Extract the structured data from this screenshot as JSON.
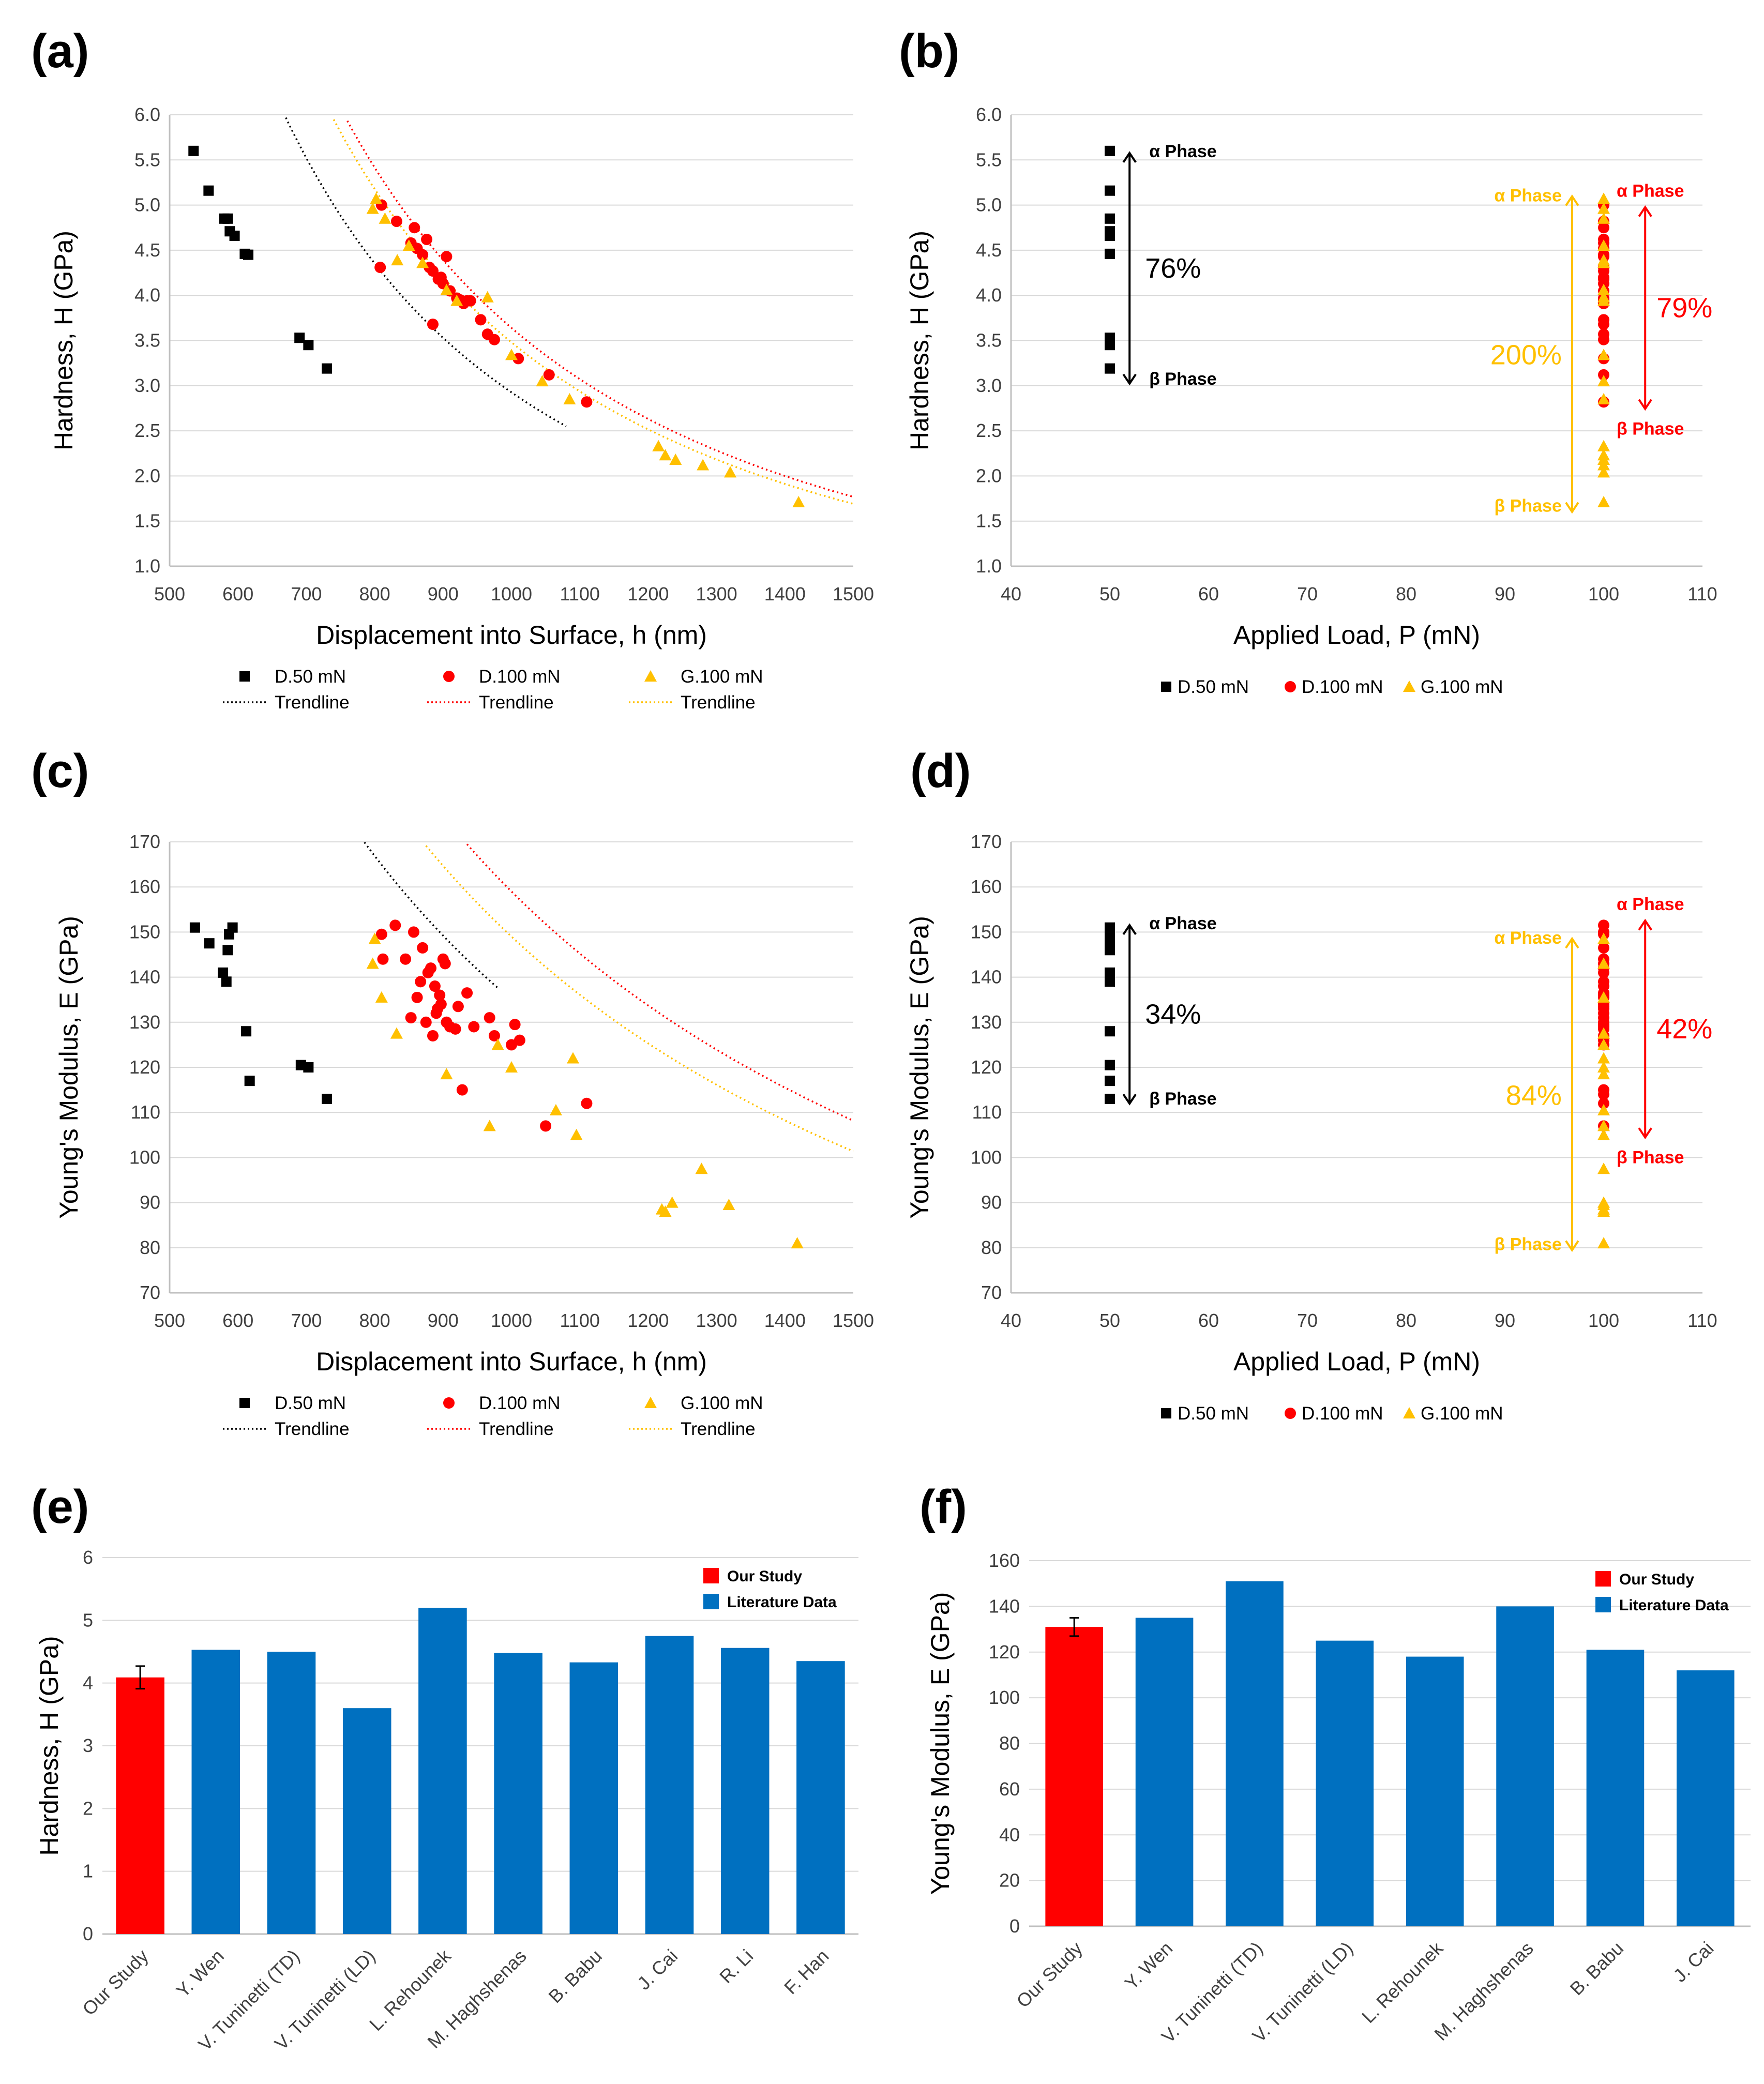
{
  "colors": {
    "black": "#000000",
    "red": "#ff0000",
    "gold": "#ffc000",
    "blue": "#0070c0",
    "grid": "#d9d9d9"
  },
  "panels": {
    "a": "(a)",
    "b": "(b)",
    "c": "(c)",
    "d": "(d)",
    "e": "(e)",
    "f": "(f)"
  },
  "chart_data": [
    {
      "id": "a",
      "type": "scatter",
      "xlabel": "Displacement into Surface, h (nm)",
      "ylabel": "Hardness, H (GPa)",
      "xlim": [
        500,
        1500
      ],
      "ylim": [
        1.0,
        6.0
      ],
      "xticks": [
        "500",
        "600",
        "700",
        "800",
        "900",
        "1000",
        "1100",
        "1200",
        "1300",
        "1400",
        "1500"
      ],
      "yticks": [
        "1.0",
        "1.5",
        "2.0",
        "2.5",
        "3.0",
        "3.5",
        "4.0",
        "4.5",
        "5.0",
        "5.5",
        "6.0"
      ],
      "series": [
        {
          "name": "D.50 mN",
          "marker": "square",
          "color": "#000000",
          "x": [
            535,
            557,
            580,
            585,
            588,
            595,
            610,
            615,
            690,
            703,
            730
          ],
          "y": [
            5.6,
            5.16,
            4.85,
            4.85,
            4.71,
            4.66,
            4.46,
            4.45,
            3.53,
            3.45,
            3.19
          ]
        },
        {
          "name": "D.100 mN",
          "marker": "circle",
          "color": "#ff0000",
          "x": [
            810,
            808,
            832,
            853,
            858,
            862,
            870,
            876,
            880,
            885,
            893,
            897,
            900,
            905,
            910,
            920,
            925,
            930,
            935,
            940,
            955,
            965,
            975,
            1010,
            1055,
            1110,
            885
          ],
          "y": [
            5.0,
            4.31,
            4.82,
            4.58,
            4.75,
            4.52,
            4.45,
            4.62,
            4.31,
            4.27,
            4.18,
            4.2,
            4.13,
            4.43,
            4.05,
            3.97,
            3.95,
            3.91,
            3.94,
            3.94,
            3.73,
            3.57,
            3.51,
            3.3,
            3.12,
            2.82,
            3.68
          ]
        },
        {
          "name": "G.100 mN",
          "marker": "triangle",
          "color": "#ffc000",
          "x": [
            797,
            802,
            815,
            833,
            850,
            870,
            905,
            920,
            965,
            1000,
            1045,
            1085,
            1215,
            1225,
            1240,
            1280,
            1320,
            1420
          ],
          "y": [
            4.96,
            5.07,
            4.85,
            4.39,
            4.55,
            4.36,
            4.06,
            3.94,
            3.98,
            3.34,
            3.05,
            2.85,
            2.33,
            2.23,
            2.18,
            2.12,
            2.04,
            1.71
          ]
        }
      ],
      "trendlines": [
        {
          "name": "Trendline",
          "color": "#000000",
          "a": 2926,
          "b": 1.78,
          "from": 500,
          "to": 1080
        },
        {
          "name": "Trendline",
          "color": "#ff0000",
          "a": 3640,
          "b": 1.78,
          "from": 500,
          "to": 1500
        },
        {
          "name": "Trendline",
          "color": "#ffc000",
          "a": 3480,
          "b": 1.78,
          "from": 500,
          "to": 1500
        }
      ],
      "legend": [
        "D.50 mN",
        "D.100 mN",
        "G.100 mN",
        "Trendline",
        "Trendline",
        "Trendline"
      ]
    },
    {
      "id": "b",
      "type": "scatter",
      "xlabel": "Applied Load, P (mN)",
      "ylabel": "Hardness, H (GPa)",
      "xlim": [
        40,
        110
      ],
      "ylim": [
        1.0,
        6.0
      ],
      "xticks": [
        "40",
        "50",
        "60",
        "70",
        "80",
        "90",
        "100",
        "110"
      ],
      "yticks": [
        "1.0",
        "1.5",
        "2.0",
        "2.5",
        "3.0",
        "3.5",
        "4.0",
        "4.5",
        "5.0",
        "5.5",
        "6.0"
      ],
      "series": [
        {
          "name": "D.50 mN",
          "marker": "square",
          "color": "#000000",
          "x": 50,
          "y": [
            5.6,
            5.16,
            4.85,
            4.71,
            4.66,
            4.46,
            3.53,
            3.45,
            3.19
          ]
        },
        {
          "name": "D.100 mN",
          "marker": "circle",
          "color": "#ff0000",
          "x": 100,
          "y": [
            5.0,
            4.82,
            4.75,
            4.62,
            4.58,
            4.52,
            4.45,
            4.43,
            4.31,
            4.27,
            4.2,
            4.18,
            4.13,
            4.05,
            3.97,
            3.95,
            3.94,
            3.91,
            3.73,
            3.68,
            3.57,
            3.51,
            3.3,
            3.12,
            2.82
          ]
        },
        {
          "name": "G.100 mN",
          "marker": "triangle",
          "color": "#ffc000",
          "x": 100,
          "y": [
            5.07,
            4.96,
            4.85,
            4.55,
            4.39,
            4.36,
            4.06,
            3.98,
            3.94,
            3.34,
            3.05,
            2.85,
            2.33,
            2.23,
            2.18,
            2.12,
            2.04,
            1.71
          ]
        }
      ],
      "annotations": {
        "black": {
          "top": "α Phase",
          "bottom": "β Phase",
          "pct": "76%"
        },
        "gold": {
          "top": "α Phase",
          "bottom": "β Phase",
          "pct": "200%"
        },
        "red": {
          "top": "α Phase",
          "bottom": "β Phase",
          "pct": "79%"
        }
      },
      "legend": [
        "D.50 mN",
        "D.100 mN",
        "G.100 mN"
      ]
    },
    {
      "id": "c",
      "type": "scatter",
      "xlabel": "Displacement into Surface, h (nm)",
      "ylabel": "Young's Modulus, E (GPa)",
      "xlim": [
        500,
        1500
      ],
      "ylim": [
        70,
        170
      ],
      "xticks": [
        "500",
        "600",
        "700",
        "800",
        "900",
        "1000",
        "1100",
        "1200",
        "1300",
        "1400",
        "1500"
      ],
      "yticks": [
        "70",
        "80",
        "90",
        "100",
        "110",
        "120",
        "130",
        "140",
        "150",
        "160",
        "170"
      ],
      "series": [
        {
          "name": "D.50 mN",
          "marker": "square",
          "color": "#000000",
          "x": [
            537,
            558,
            578,
            583,
            585,
            587,
            592,
            612,
            617,
            692,
            703,
            730
          ],
          "y": [
            151,
            147.5,
            141,
            139,
            146,
            149.5,
            151,
            128,
            117,
            120.5,
            120,
            113
          ]
        },
        {
          "name": "D.100 mN",
          "marker": "circle",
          "color": "#ff0000",
          "x": [
            810,
            812,
            830,
            845,
            853,
            857,
            862,
            867,
            870,
            875,
            878,
            882,
            885,
            888,
            890,
            892,
            895,
            897,
            900,
            903,
            905,
            910,
            918,
            922,
            928,
            935,
            945,
            968,
            975,
            1000,
            1005,
            1012,
            1050,
            1110
          ],
          "y": [
            149.5,
            144,
            151.5,
            144,
            131,
            150,
            135.5,
            139,
            146.5,
            130,
            141,
            142,
            127,
            138,
            132,
            133,
            136,
            134,
            144,
            143,
            130,
            129,
            128.5,
            133.5,
            115,
            136.5,
            129,
            131,
            127,
            125,
            129.5,
            126,
            107,
            112
          ]
        },
        {
          "name": "G.100 mN",
          "marker": "triangle",
          "color": "#ffc000",
          "x": [
            797,
            800,
            810,
            832,
            905,
            968,
            980,
            1000,
            1065,
            1090,
            1095,
            1220,
            1225,
            1235,
            1278,
            1318,
            1418
          ],
          "y": [
            143,
            148.5,
            135.5,
            127.5,
            118.5,
            107,
            125,
            120,
            110.5,
            122,
            105,
            88.5,
            88,
            90,
            97.5,
            89.5,
            81
          ]
        }
      ],
      "trendlines": [
        {
          "name": "Trendline",
          "color": "#000000",
          "a": 135,
          "b": 0.95,
          "from": 500,
          "to": 980
        },
        {
          "name": "Trendline",
          "color": "#ff0000",
          "a": 159,
          "b": 0.95,
          "from": 500,
          "to": 1500
        },
        {
          "name": "Trendline",
          "color": "#ffc000",
          "a": 149,
          "b": 0.95,
          "from": 500,
          "to": 1500
        }
      ],
      "legend": [
        "D.50 mN",
        "D.100 mN",
        "G.100 mN",
        "Trendline",
        "Trendline",
        "Trendline"
      ]
    },
    {
      "id": "d",
      "type": "scatter",
      "xlabel": "Applied Load, P (mN)",
      "ylabel": "Young's Modulus, E (GPa)",
      "xlim": [
        40,
        110
      ],
      "ylim": [
        70,
        170
      ],
      "xticks": [
        "40",
        "50",
        "60",
        "70",
        "80",
        "90",
        "100",
        "110"
      ],
      "yticks": [
        "70",
        "80",
        "90",
        "100",
        "110",
        "120",
        "130",
        "140",
        "150",
        "160",
        "170"
      ],
      "series": [
        {
          "name": "D.50 mN",
          "marker": "square",
          "color": "#000000",
          "x": 50,
          "y": [
            151,
            149.5,
            147.5,
            146,
            141,
            139,
            128,
            120.5,
            117,
            113
          ]
        },
        {
          "name": "D.100 mN",
          "marker": "circle",
          "color": "#ff0000",
          "x": 100,
          "y": [
            151.5,
            150,
            149.5,
            146.5,
            144,
            143,
            142,
            141,
            139,
            138,
            136.5,
            136,
            135.5,
            134,
            133.5,
            133,
            132,
            131,
            130,
            129.5,
            129,
            128.5,
            127,
            126,
            125,
            115,
            114,
            112,
            107
          ]
        },
        {
          "name": "G.100 mN",
          "marker": "triangle",
          "color": "#ffc000",
          "x": 100,
          "y": [
            148.5,
            143,
            135.5,
            127.5,
            125,
            122,
            120,
            118.5,
            110.5,
            107,
            105,
            97.5,
            90,
            89.5,
            88.5,
            88,
            81
          ]
        }
      ],
      "annotations": {
        "black": {
          "top": "α Phase",
          "bottom": "β Phase",
          "pct": "34%"
        },
        "gold": {
          "top": "α Phase",
          "bottom": "β Phase",
          "pct": "84%"
        },
        "red": {
          "top": "α Phase",
          "bottom": "β Phase",
          "pct": "42%"
        }
      },
      "legend": [
        "D.50 mN",
        "D.100 mN",
        "G.100 mN"
      ]
    },
    {
      "id": "e",
      "type": "bar",
      "ylabel": "Hardness, H (GPa)",
      "ylim": [
        0,
        6
      ],
      "yticks": [
        "0",
        "1",
        "2",
        "3",
        "4",
        "5",
        "6"
      ],
      "categories": [
        "Our Study",
        "Y. Wen",
        "V. Tuninetti (TD)",
        "V. Tuninetti (LD)",
        "L. Rehounek",
        "M. Haghshenas",
        "B. Babu",
        "J. Cai",
        "R. Li",
        "F. Han"
      ],
      "values": [
        4.09,
        4.53,
        4.5,
        3.6,
        5.2,
        4.48,
        4.33,
        4.75,
        4.56,
        4.35
      ],
      "error": {
        "index": 0,
        "plus_minus": 0.18
      },
      "legend": [
        "Our Study",
        "Literature Data"
      ]
    },
    {
      "id": "f",
      "type": "bar",
      "ylabel": "Young's Modulus, E (GPa)",
      "ylim": [
        0,
        160
      ],
      "yticks": [
        "0",
        "20",
        "40",
        "60",
        "80",
        "100",
        "120",
        "140",
        "160"
      ],
      "categories": [
        "Our Study",
        "Y. Wen",
        "V. Tuninetti (TD)",
        "V. Tuninetti (LD)",
        "L. Rehounek",
        "M. Haghshenas",
        "B. Babu",
        "J. Cai"
      ],
      "values": [
        131,
        135,
        151,
        125,
        118,
        140,
        121,
        112
      ],
      "error": {
        "index": 0,
        "plus_minus": 4
      },
      "legend": [
        "Our Study",
        "Literature Data"
      ]
    }
  ]
}
